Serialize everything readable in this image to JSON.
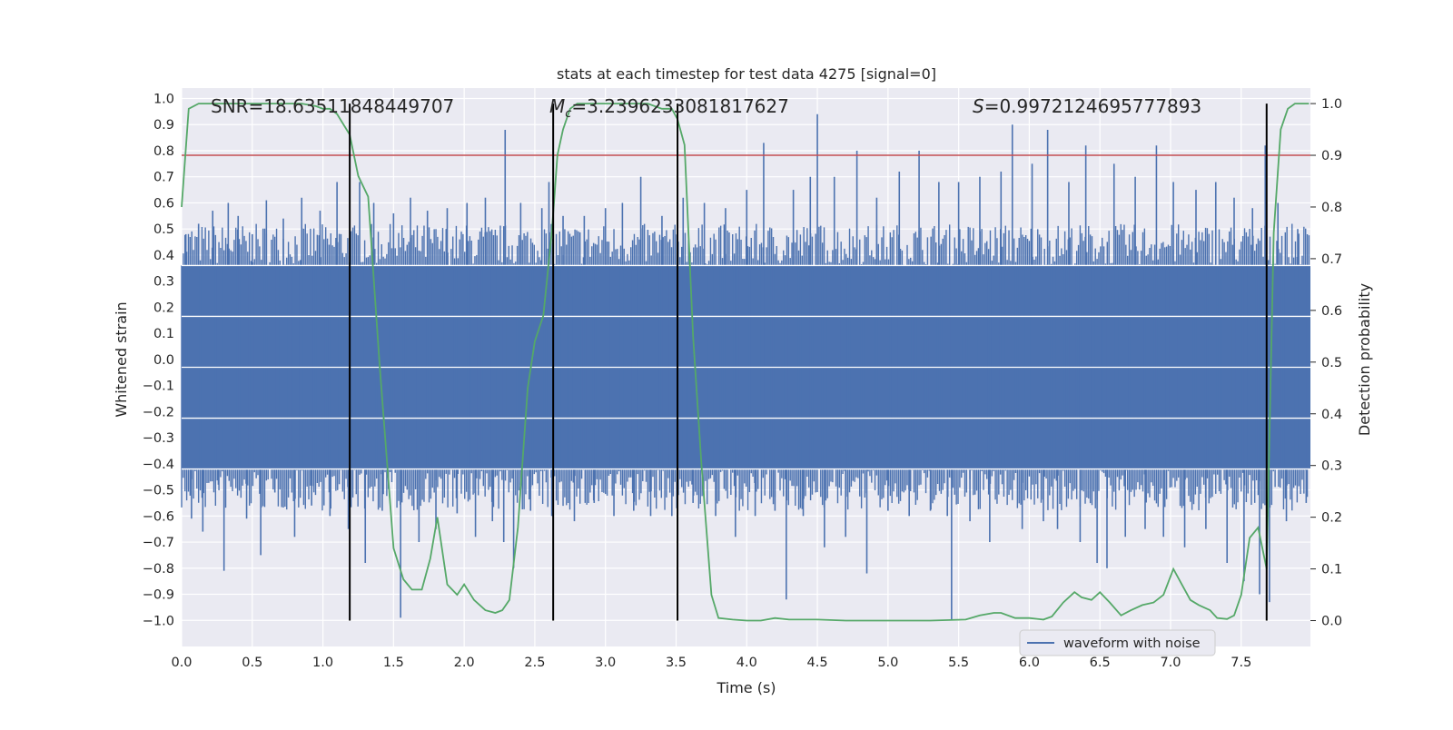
{
  "chart_data": {
    "type": "line",
    "title": "stats at each timestep for test data 4275 [signal=0]",
    "xlabel": "Time (s)",
    "ylabel": "Whitened strain",
    "y2label": "Detection probability",
    "xlim": [
      0.0,
      7.99
    ],
    "ylim": [
      -1.1,
      1.04
    ],
    "y2lim": [
      -0.05,
      1.03
    ],
    "x_ticks": [
      0.0,
      0.5,
      1.0,
      1.5,
      2.0,
      2.5,
      3.0,
      3.5,
      4.0,
      4.5,
      5.0,
      5.5,
      6.0,
      6.5,
      7.0,
      7.5
    ],
    "x_tick_labels": [
      "0.0",
      "0.5",
      "1.0",
      "1.5",
      "2.0",
      "2.5",
      "3.0",
      "3.5",
      "4.0",
      "4.5",
      "5.0",
      "5.5",
      "6.0",
      "6.5",
      "7.0",
      "7.5"
    ],
    "y_ticks": [
      1.0,
      0.9,
      0.8,
      0.7,
      0.6,
      0.5,
      0.4,
      0.3,
      0.2,
      0.1,
      0.0,
      -0.1,
      -0.2,
      -0.3,
      -0.4,
      -0.5,
      -0.6,
      -0.7,
      -0.8,
      -0.9,
      -1.0
    ],
    "y_tick_labels": [
      "1.0",
      "0.9",
      "0.8",
      "0.7",
      "0.6",
      "0.5",
      "0.4",
      "0.3",
      "0.2",
      "0.1",
      "0.0",
      "−0.1",
      "−0.2",
      "−0.3",
      "−0.4",
      "−0.5",
      "−0.6",
      "−0.7",
      "−0.8",
      "−0.9",
      "−1.0"
    ],
    "y2_ticks": [
      1.0,
      0.9,
      0.8,
      0.7,
      0.6,
      0.5,
      0.4,
      0.3,
      0.2,
      0.1,
      0.0
    ],
    "y2_tick_labels": [
      "1.0",
      "0.9",
      "0.8",
      "0.7",
      "0.6",
      "0.5",
      "0.4",
      "0.3",
      "0.2",
      "0.1",
      "0.0"
    ],
    "grid": true,
    "legend": {
      "placement": "lower-right",
      "entries": [
        "waveform with noise"
      ]
    },
    "annotations": {
      "snr": "SNR=18.63511848449707",
      "mc_symbol": "M",
      "mc_sub": "c",
      "mc_value": "=3.2396233081817627",
      "s_symbol": "S",
      "s_value": "=0.9972124695777893"
    },
    "white_band_lines_strain": [
      0.36,
      0.165,
      -0.03,
      -0.225,
      -0.42
    ],
    "threshold_line": {
      "axis": "y2",
      "value": 0.9,
      "color": "#c44e52"
    },
    "vertical_markers_x": [
      1.19,
      2.63,
      3.51,
      7.68
    ],
    "waveform": {
      "name": "waveform with noise",
      "color": "#4c72b0",
      "envelope_upper": 0.36,
      "envelope_lower": -0.42,
      "spikes": [
        {
          "x": 0.03,
          "y": 0.48
        },
        {
          "x": 0.07,
          "y": -0.61
        },
        {
          "x": 0.12,
          "y": 0.52
        },
        {
          "x": 0.15,
          "y": -0.66
        },
        {
          "x": 0.22,
          "y": 0.57
        },
        {
          "x": 0.26,
          "y": -0.48
        },
        {
          "x": 0.3,
          "y": -0.81
        },
        {
          "x": 0.33,
          "y": 0.6
        },
        {
          "x": 0.4,
          "y": 0.55
        },
        {
          "x": 0.46,
          "y": -0.61
        },
        {
          "x": 0.5,
          "y": 0.48
        },
        {
          "x": 0.56,
          "y": -0.75
        },
        {
          "x": 0.6,
          "y": 0.61
        },
        {
          "x": 0.66,
          "y": -0.51
        },
        {
          "x": 0.72,
          "y": 0.54
        },
        {
          "x": 0.8,
          "y": -0.68
        },
        {
          "x": 0.85,
          "y": 0.62
        },
        {
          "x": 0.92,
          "y": -0.56
        },
        {
          "x": 0.98,
          "y": 0.57
        },
        {
          "x": 1.05,
          "y": -0.6
        },
        {
          "x": 1.1,
          "y": 0.68
        },
        {
          "x": 1.18,
          "y": -0.65
        },
        {
          "x": 1.26,
          "y": 0.68
        },
        {
          "x": 1.3,
          "y": -0.78
        },
        {
          "x": 1.36,
          "y": 0.6
        },
        {
          "x": 1.42,
          "y": -0.58
        },
        {
          "x": 1.5,
          "y": 0.56
        },
        {
          "x": 1.55,
          "y": -0.99
        },
        {
          "x": 1.62,
          "y": 0.62
        },
        {
          "x": 1.68,
          "y": -0.7
        },
        {
          "x": 1.74,
          "y": 0.57
        },
        {
          "x": 1.8,
          "y": -0.65
        },
        {
          "x": 1.88,
          "y": 0.58
        },
        {
          "x": 1.95,
          "y": -0.59
        },
        {
          "x": 2.02,
          "y": 0.6
        },
        {
          "x": 2.08,
          "y": -0.68
        },
        {
          "x": 2.15,
          "y": 0.62
        },
        {
          "x": 2.2,
          "y": -0.62
        },
        {
          "x": 2.28,
          "y": -0.7
        },
        {
          "x": 2.29,
          "y": 0.88
        },
        {
          "x": 2.35,
          "y": -0.8
        },
        {
          "x": 2.4,
          "y": 0.6
        },
        {
          "x": 2.47,
          "y": -0.58
        },
        {
          "x": 2.55,
          "y": 0.58
        },
        {
          "x": 2.6,
          "y": 0.68
        },
        {
          "x": 2.62,
          "y": -0.6
        },
        {
          "x": 2.7,
          "y": 0.55
        },
        {
          "x": 2.78,
          "y": -0.62
        },
        {
          "x": 2.85,
          "y": 0.55
        },
        {
          "x": 2.92,
          "y": -0.55
        },
        {
          "x": 3.0,
          "y": 0.58
        },
        {
          "x": 3.06,
          "y": -0.6
        },
        {
          "x": 3.12,
          "y": 0.6
        },
        {
          "x": 3.2,
          "y": -0.58
        },
        {
          "x": 3.25,
          "y": 0.7
        },
        {
          "x": 3.32,
          "y": -0.6
        },
        {
          "x": 3.4,
          "y": 0.55
        },
        {
          "x": 3.47,
          "y": -0.6
        },
        {
          "x": 3.55,
          "y": 0.62
        },
        {
          "x": 3.62,
          "y": -0.55
        },
        {
          "x": 3.7,
          "y": 0.6
        },
        {
          "x": 3.78,
          "y": -0.6
        },
        {
          "x": 3.85,
          "y": 0.58
        },
        {
          "x": 3.92,
          "y": -0.68
        },
        {
          "x": 4.0,
          "y": 0.65
        },
        {
          "x": 4.06,
          "y": -0.6
        },
        {
          "x": 4.12,
          "y": 0.83
        },
        {
          "x": 4.2,
          "y": -0.58
        },
        {
          "x": 4.28,
          "y": -0.92
        },
        {
          "x": 4.33,
          "y": 0.65
        },
        {
          "x": 4.4,
          "y": -0.6
        },
        {
          "x": 4.45,
          "y": 0.7
        },
        {
          "x": 4.5,
          "y": 0.94
        },
        {
          "x": 4.55,
          "y": -0.72
        },
        {
          "x": 4.62,
          "y": 0.7
        },
        {
          "x": 4.7,
          "y": -0.68
        },
        {
          "x": 4.78,
          "y": 0.8
        },
        {
          "x": 4.85,
          "y": -0.82
        },
        {
          "x": 4.92,
          "y": 0.62
        },
        {
          "x": 5.0,
          "y": -0.58
        },
        {
          "x": 5.08,
          "y": 0.72
        },
        {
          "x": 5.15,
          "y": -0.6
        },
        {
          "x": 5.22,
          "y": 0.8
        },
        {
          "x": 5.3,
          "y": -0.58
        },
        {
          "x": 5.36,
          "y": 0.68
        },
        {
          "x": 5.42,
          "y": -0.6
        },
        {
          "x": 5.45,
          "y": -1.0
        },
        {
          "x": 5.5,
          "y": 0.68
        },
        {
          "x": 5.58,
          "y": -0.62
        },
        {
          "x": 5.65,
          "y": 0.7
        },
        {
          "x": 5.72,
          "y": -0.7
        },
        {
          "x": 5.8,
          "y": 0.72
        },
        {
          "x": 5.88,
          "y": 0.9
        },
        {
          "x": 5.95,
          "y": -0.65
        },
        {
          "x": 6.02,
          "y": 0.75
        },
        {
          "x": 6.1,
          "y": -0.62
        },
        {
          "x": 6.13,
          "y": 0.88
        },
        {
          "x": 6.2,
          "y": -0.65
        },
        {
          "x": 6.28,
          "y": 0.68
        },
        {
          "x": 6.36,
          "y": -0.7
        },
        {
          "x": 6.4,
          "y": 0.82
        },
        {
          "x": 6.48,
          "y": -0.78
        },
        {
          "x": 6.55,
          "y": -0.8
        },
        {
          "x": 6.6,
          "y": 0.75
        },
        {
          "x": 6.68,
          "y": -0.68
        },
        {
          "x": 6.75,
          "y": 0.7
        },
        {
          "x": 6.82,
          "y": -0.65
        },
        {
          "x": 6.9,
          "y": 0.82
        },
        {
          "x": 6.95,
          "y": -0.68
        },
        {
          "x": 7.02,
          "y": 0.68
        },
        {
          "x": 7.1,
          "y": -0.72
        },
        {
          "x": 7.18,
          "y": 0.65
        },
        {
          "x": 7.25,
          "y": -0.65
        },
        {
          "x": 7.32,
          "y": 0.68
        },
        {
          "x": 7.4,
          "y": -0.78
        },
        {
          "x": 7.45,
          "y": 0.62
        },
        {
          "x": 7.52,
          "y": -0.85
        },
        {
          "x": 7.58,
          "y": 0.58
        },
        {
          "x": 7.63,
          "y": -0.9
        },
        {
          "x": 7.67,
          "y": 0.82
        },
        {
          "x": 7.7,
          "y": -0.93
        },
        {
          "x": 7.76,
          "y": 0.6
        },
        {
          "x": 7.82,
          "y": -0.62
        },
        {
          "x": 7.9,
          "y": 0.5
        },
        {
          "x": 7.96,
          "y": -0.55
        }
      ]
    },
    "probability": {
      "color": "#55a868",
      "x": [
        0.0,
        0.05,
        0.12,
        0.3,
        0.5,
        0.7,
        0.85,
        0.95,
        1.0,
        1.05,
        1.1,
        1.19,
        1.25,
        1.32,
        1.4,
        1.5,
        1.57,
        1.63,
        1.7,
        1.76,
        1.81,
        1.88,
        1.95,
        2.0,
        2.07,
        2.15,
        2.22,
        2.27,
        2.32,
        2.38,
        2.45,
        2.5,
        2.56,
        2.62,
        2.66,
        2.7,
        2.75,
        2.8,
        2.9,
        3.0,
        3.1,
        3.2,
        3.3,
        3.4,
        3.47,
        3.51,
        3.56,
        3.62,
        3.68,
        3.75,
        3.8,
        3.9,
        4.0,
        4.1,
        4.2,
        4.3,
        4.5,
        4.7,
        5.0,
        5.3,
        5.55,
        5.65,
        5.75,
        5.8,
        5.9,
        6.0,
        6.1,
        6.16,
        6.24,
        6.32,
        6.37,
        6.44,
        6.5,
        6.57,
        6.65,
        6.72,
        6.8,
        6.88,
        6.95,
        7.02,
        7.08,
        7.14,
        7.2,
        7.28,
        7.33,
        7.4,
        7.45,
        7.5,
        7.56,
        7.62,
        7.68,
        7.73,
        7.78,
        7.83,
        7.88,
        7.92,
        7.98
      ],
      "y": [
        0.8,
        0.99,
        1.0,
        1.0,
        1.0,
        1.0,
        1.0,
        0.995,
        0.99,
        0.99,
        0.98,
        0.94,
        0.86,
        0.82,
        0.5,
        0.14,
        0.08,
        0.06,
        0.06,
        0.12,
        0.2,
        0.07,
        0.05,
        0.07,
        0.04,
        0.02,
        0.015,
        0.02,
        0.04,
        0.18,
        0.45,
        0.54,
        0.59,
        0.75,
        0.9,
        0.95,
        0.99,
        1.0,
        1.0,
        1.0,
        1.0,
        1.0,
        1.0,
        0.99,
        0.99,
        0.97,
        0.92,
        0.55,
        0.3,
        0.05,
        0.005,
        0.002,
        0.0,
        0.0,
        0.005,
        0.002,
        0.002,
        0.0,
        0.0,
        0.0,
        0.002,
        0.01,
        0.015,
        0.015,
        0.005,
        0.005,
        0.002,
        0.008,
        0.035,
        0.055,
        0.045,
        0.04,
        0.055,
        0.035,
        0.01,
        0.02,
        0.03,
        0.035,
        0.05,
        0.1,
        0.07,
        0.04,
        0.03,
        0.02,
        0.005,
        0.003,
        0.01,
        0.05,
        0.16,
        0.18,
        0.1,
        0.75,
        0.95,
        0.99,
        1.0,
        1.0,
        1.0
      ]
    }
  }
}
